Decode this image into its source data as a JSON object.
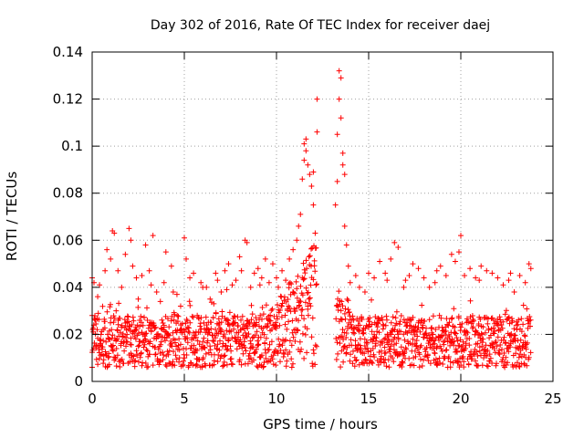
{
  "chart_data": {
    "type": "scatter",
    "title": "Day 302 of 2016, Rate Of TEC Index for receiver daej",
    "xlabel": "GPS time / hours",
    "ylabel": "ROTI / TECUs",
    "xlim": [
      0,
      25
    ],
    "ylim": [
      0,
      0.14
    ],
    "xticks": [
      0,
      5,
      10,
      15,
      20,
      25
    ],
    "xtick_labels": [
      "0",
      "5",
      "10",
      "15",
      "20",
      "25"
    ],
    "yticks": [
      0,
      0.02,
      0.04,
      0.06,
      0.08,
      0.1,
      0.12,
      0.14
    ],
    "ytick_labels": [
      "0",
      "0.02",
      "0.04",
      "0.06",
      "0.08",
      "0.1",
      "0.12",
      "0.14"
    ],
    "grid": true,
    "marker": "+",
    "series": [
      {
        "name": "ROTI (daej)",
        "color": "#ff0000",
        "data_gap_hours": [
          12.2,
          13.2
        ],
        "points": [
          [
            0.0,
            0.044
          ],
          [
            0.0,
            0.028
          ],
          [
            0.1,
            0.042
          ],
          [
            0.2,
            0.015
          ],
          [
            0.3,
            0.036
          ],
          [
            0.4,
            0.041
          ],
          [
            0.6,
            0.022
          ],
          [
            0.7,
            0.047
          ],
          [
            0.8,
            0.056
          ],
          [
            0.9,
            0.018
          ],
          [
            1.0,
            0.052
          ],
          [
            1.1,
            0.064
          ],
          [
            1.2,
            0.063
          ],
          [
            1.3,
            0.03
          ],
          [
            1.4,
            0.047
          ],
          [
            1.6,
            0.04
          ],
          [
            1.8,
            0.054
          ],
          [
            1.9,
            0.025
          ],
          [
            2.0,
            0.065
          ],
          [
            2.1,
            0.06
          ],
          [
            2.2,
            0.049
          ],
          [
            2.5,
            0.035
          ],
          [
            2.7,
            0.045
          ],
          [
            2.9,
            0.058
          ],
          [
            3.1,
            0.047
          ],
          [
            3.3,
            0.062
          ],
          [
            3.5,
            0.038
          ],
          [
            3.7,
            0.034
          ],
          [
            3.9,
            0.042
          ],
          [
            4.0,
            0.055
          ],
          [
            4.3,
            0.049
          ],
          [
            4.4,
            0.038
          ],
          [
            4.6,
            0.037
          ],
          [
            4.8,
            0.032
          ],
          [
            5.0,
            0.061
          ],
          [
            5.1,
            0.052
          ],
          [
            5.3,
            0.044
          ],
          [
            5.5,
            0.046
          ],
          [
            5.7,
            0.028
          ],
          [
            6.0,
            0.04
          ],
          [
            6.2,
            0.04
          ],
          [
            6.4,
            0.035
          ],
          [
            6.6,
            0.033
          ],
          [
            6.8,
            0.043
          ],
          [
            7.0,
            0.038
          ],
          [
            7.2,
            0.047
          ],
          [
            7.4,
            0.05
          ],
          [
            7.6,
            0.041
          ],
          [
            7.8,
            0.043
          ],
          [
            8.0,
            0.053
          ],
          [
            8.1,
            0.047
          ],
          [
            8.3,
            0.06
          ],
          [
            8.4,
            0.059
          ],
          [
            8.6,
            0.04
          ],
          [
            8.8,
            0.046
          ],
          [
            9.0,
            0.048
          ],
          [
            9.2,
            0.044
          ],
          [
            9.4,
            0.052
          ],
          [
            9.6,
            0.042
          ],
          [
            9.8,
            0.05
          ],
          [
            10.0,
            0.044
          ],
          [
            10.3,
            0.047
          ],
          [
            10.5,
            0.043
          ],
          [
            10.7,
            0.052
          ],
          [
            10.9,
            0.056
          ],
          [
            11.1,
            0.06
          ],
          [
            11.2,
            0.066
          ],
          [
            11.3,
            0.071
          ],
          [
            11.4,
            0.086
          ],
          [
            11.5,
            0.094
          ],
          [
            11.5,
            0.101
          ],
          [
            11.6,
            0.103
          ],
          [
            11.6,
            0.098
          ],
          [
            11.7,
            0.092
          ],
          [
            11.8,
            0.088
          ],
          [
            11.9,
            0.083
          ],
          [
            12.0,
            0.089
          ],
          [
            12.0,
            0.075
          ],
          [
            12.1,
            0.063
          ],
          [
            12.2,
            0.106
          ],
          [
            12.2,
            0.12
          ],
          [
            13.2,
            0.075
          ],
          [
            13.3,
            0.085
          ],
          [
            13.3,
            0.105
          ],
          [
            13.4,
            0.12
          ],
          [
            13.4,
            0.132
          ],
          [
            13.5,
            0.129
          ],
          [
            13.5,
            0.112
          ],
          [
            13.6,
            0.097
          ],
          [
            13.6,
            0.092
          ],
          [
            13.7,
            0.088
          ],
          [
            13.7,
            0.066
          ],
          [
            13.8,
            0.058
          ],
          [
            13.9,
            0.049
          ],
          [
            14.0,
            0.042
          ],
          [
            14.3,
            0.045
          ],
          [
            14.5,
            0.04
          ],
          [
            14.8,
            0.038
          ],
          [
            15.0,
            0.046
          ],
          [
            15.3,
            0.044
          ],
          [
            15.6,
            0.051
          ],
          [
            15.9,
            0.046
          ],
          [
            16.2,
            0.052
          ],
          [
            16.4,
            0.059
          ],
          [
            16.6,
            0.057
          ],
          [
            16.9,
            0.04
          ],
          [
            17.2,
            0.045
          ],
          [
            17.4,
            0.05
          ],
          [
            17.7,
            0.048
          ],
          [
            18.0,
            0.044
          ],
          [
            18.3,
            0.04
          ],
          [
            18.6,
            0.042
          ],
          [
            18.9,
            0.049
          ],
          [
            19.2,
            0.045
          ],
          [
            19.5,
            0.054
          ],
          [
            19.7,
            0.051
          ],
          [
            19.9,
            0.055
          ],
          [
            20.0,
            0.062
          ],
          [
            20.2,
            0.045
          ],
          [
            20.5,
            0.048
          ],
          [
            20.8,
            0.044
          ],
          [
            21.1,
            0.049
          ],
          [
            21.4,
            0.047
          ],
          [
            21.7,
            0.046
          ],
          [
            22.0,
            0.044
          ],
          [
            22.3,
            0.041
          ],
          [
            22.6,
            0.043
          ],
          [
            22.9,
            0.038
          ],
          [
            23.2,
            0.045
          ],
          [
            23.5,
            0.042
          ],
          [
            23.7,
            0.05
          ],
          [
            23.8,
            0.048
          ],
          [
            2.4,
            0.044
          ],
          [
            3.2,
            0.041
          ],
          [
            5.9,
            0.042
          ],
          [
            6.7,
            0.046
          ],
          [
            7.3,
            0.039
          ],
          [
            9.1,
            0.041
          ],
          [
            10.1,
            0.04
          ],
          [
            16.0,
            0.043
          ],
          [
            17.0,
            0.043
          ],
          [
            18.7,
            0.047
          ],
          [
            21.0,
            0.043
          ],
          [
            22.7,
            0.046
          ]
        ]
      }
    ]
  }
}
